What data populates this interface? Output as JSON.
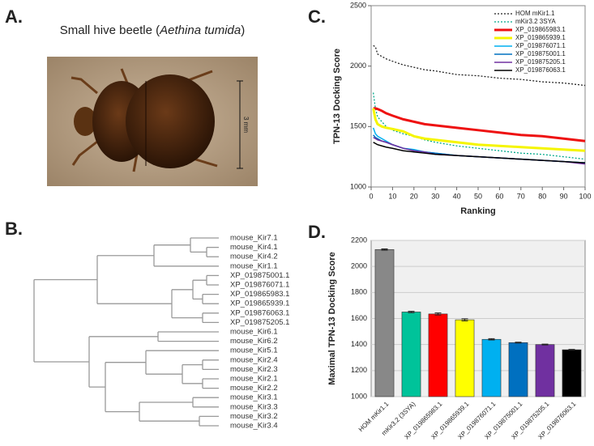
{
  "panel_labels": [
    "A.",
    "B.",
    "C.",
    "D."
  ],
  "photo": {
    "title_start": "Small hive beetle (",
    "species": "Aethina tumida",
    "title_end": ")",
    "scale_label": "3 mm"
  },
  "tree": {
    "leaves": [
      "mouse_Kir7.1",
      "mouse_Kir4.1",
      "mouse_Kir4.2",
      "mouse_Kir1.1",
      "XP_019875001.1",
      "XP_019876071.1",
      "XP_019865983.1",
      "XP_019865939.1",
      "XP_019876063.1",
      "XP_019875205.1",
      "mouse_Kir6.1",
      "mouse_Kir6.2",
      "mouse_Kir5.1",
      "mouse_Kir2.4",
      "mouse_Kir2.3",
      "mouse_Kir2.1",
      "mouse_Kir2.2",
      "mouse_Kir3.1",
      "mouse_Kir3.3",
      "mouse_Kir3.2",
      "mouse_Kir3.4"
    ]
  },
  "chart_data": [
    {
      "type": "line",
      "xlabel": "Ranking",
      "ylabel": "TPN-13 Docking Score",
      "x": [
        1,
        2,
        3,
        5,
        7,
        10,
        15,
        20,
        25,
        30,
        40,
        50,
        60,
        70,
        80,
        90,
        100
      ],
      "xlim": [
        0,
        100
      ],
      "xticks": [
        0,
        10,
        20,
        30,
        40,
        50,
        60,
        70,
        80,
        90,
        100
      ],
      "ylim": [
        1000,
        2500
      ],
      "yticks": [
        1000,
        1500,
        2000,
        2500
      ],
      "legend": "upper right",
      "series": [
        {
          "name": "HOM mKir1.1",
          "color": "#222222",
          "style": "dotted",
          "values": [
            2170,
            2160,
            2100,
            2080,
            2060,
            2040,
            2010,
            1990,
            1970,
            1960,
            1930,
            1920,
            1900,
            1890,
            1870,
            1860,
            1840
          ]
        },
        {
          "name": "mKir3.2 3SYA",
          "color": "#00a88a",
          "style": "dotted",
          "values": [
            1780,
            1650,
            1580,
            1540,
            1500,
            1470,
            1440,
            1420,
            1390,
            1370,
            1340,
            1320,
            1300,
            1280,
            1270,
            1250,
            1230
          ]
        },
        {
          "name": "XP_019865983.1",
          "color": "#ee1111",
          "style": "bold",
          "values": [
            1650,
            1650,
            1645,
            1630,
            1610,
            1590,
            1560,
            1540,
            1520,
            1510,
            1490,
            1470,
            1450,
            1430,
            1420,
            1400,
            1380
          ]
        },
        {
          "name": "XP_019865939.1",
          "color": "#f5f500",
          "style": "bold",
          "values": [
            1650,
            1560,
            1520,
            1500,
            1490,
            1480,
            1460,
            1420,
            1400,
            1390,
            1370,
            1350,
            1340,
            1330,
            1320,
            1310,
            1300
          ]
        },
        {
          "name": "XP_019876071.1",
          "color": "#00b0f0",
          "style": "solid",
          "values": [
            1490,
            1440,
            1420,
            1400,
            1380,
            1350,
            1320,
            1310,
            1290,
            1280,
            1260,
            1250,
            1240,
            1230,
            1220,
            1210,
            1200
          ]
        },
        {
          "name": "XP_019875001.1",
          "color": "#0070c0",
          "style": "solid",
          "values": [
            1430,
            1410,
            1400,
            1380,
            1370,
            1350,
            1320,
            1300,
            1290,
            1280,
            1260,
            1250,
            1240,
            1230,
            1220,
            1210,
            1200
          ]
        },
        {
          "name": "XP_019875205.1",
          "color": "#7030a0",
          "style": "solid",
          "values": [
            1410,
            1400,
            1390,
            1380,
            1370,
            1350,
            1320,
            1300,
            1290,
            1270,
            1260,
            1250,
            1240,
            1230,
            1220,
            1210,
            1190
          ]
        },
        {
          "name": "XP_019876063.1",
          "color": "#000000",
          "style": "solid",
          "values": [
            1370,
            1360,
            1350,
            1340,
            1330,
            1320,
            1300,
            1290,
            1280,
            1270,
            1260,
            1250,
            1240,
            1230,
            1220,
            1210,
            1200
          ]
        }
      ]
    },
    {
      "type": "bar",
      "ylabel": "Maximal TPN-13 Docking Score",
      "categories": [
        "HOM mKir1.1",
        "mKir3.2 (3SYA)",
        "XP_019865983.1",
        "XP_019865939.1",
        "XP_019876071.1",
        "XP_019875001.1",
        "XP_019875205.1",
        "XP_019876063.1"
      ],
      "values": [
        2130,
        1650,
        1635,
        1590,
        1440,
        1415,
        1400,
        1360
      ],
      "errors": [
        5,
        5,
        8,
        8,
        5,
        3,
        3,
        3
      ],
      "colors": [
        "#888888",
        "#00c39a",
        "#ff0000",
        "#ffff00",
        "#00b0f0",
        "#0070c0",
        "#7030a0",
        "#000000"
      ],
      "ylim": [
        1000,
        2200
      ],
      "yticks": [
        1000,
        1200,
        1400,
        1600,
        1800,
        2000,
        2200
      ],
      "grid": true
    }
  ]
}
